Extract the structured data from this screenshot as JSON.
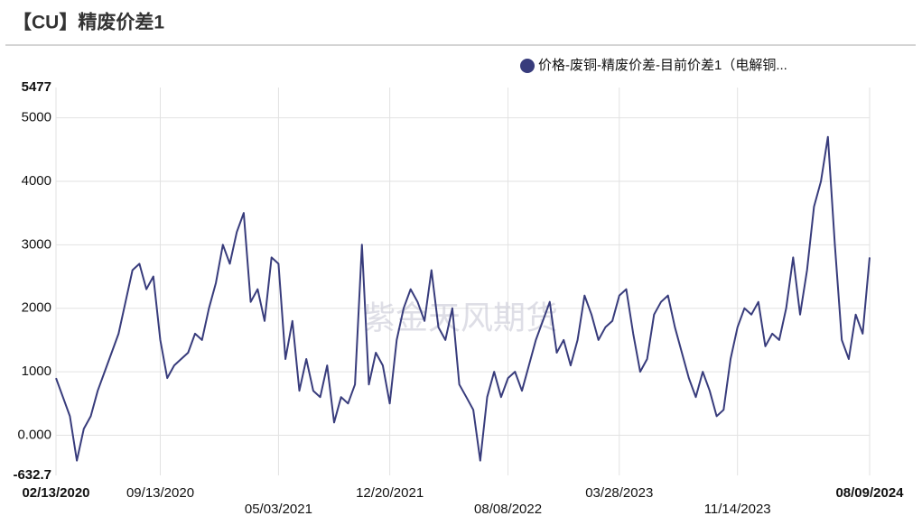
{
  "chart_data": {
    "type": "line",
    "title": "【CU】精废价差1",
    "watermark": "紫金天风期货",
    "categories": [
      "02/13/2020",
      null,
      null,
      null,
      null,
      null,
      null,
      null,
      null,
      null,
      null,
      null,
      null,
      null,
      null,
      "09/13/2020",
      null,
      null,
      null,
      null,
      null,
      null,
      null,
      null,
      null,
      null,
      null,
      null,
      null,
      null,
      null,
      null,
      "05/03/2021",
      null,
      null,
      null,
      null,
      null,
      null,
      null,
      null,
      null,
      null,
      null,
      null,
      null,
      null,
      null,
      "12/20/2021",
      null,
      null,
      null,
      null,
      null,
      null,
      null,
      null,
      null,
      null,
      null,
      null,
      null,
      null,
      null,
      null,
      "08/08/2022",
      null,
      null,
      null,
      null,
      null,
      null,
      null,
      null,
      null,
      null,
      null,
      null,
      null,
      null,
      null,
      "03/28/2023",
      null,
      null,
      null,
      null,
      null,
      null,
      null,
      null,
      null,
      null,
      null,
      null,
      null,
      null,
      null,
      null,
      "11/14/2023",
      null,
      null,
      null,
      null,
      null,
      null,
      null,
      null,
      null,
      null,
      null,
      null,
      null,
      null,
      null,
      null,
      null,
      null,
      "08/09/2024"
    ],
    "series": [
      {
        "name": "价格-废铜-精废价差-目前价差1（电解铜...",
        "color": "#383c7c",
        "values": [
          900,
          600,
          300,
          -400,
          100,
          300,
          700,
          1000,
          1300,
          1600,
          2100,
          2600,
          2700,
          2300,
          2500,
          1500,
          900,
          1100,
          1200,
          1300,
          1600,
          1500,
          2000,
          2400,
          3000,
          2700,
          3200,
          3500,
          2100,
          2300,
          1800,
          2800,
          2700,
          1200,
          1800,
          700,
          1200,
          700,
          600,
          1100,
          200,
          600,
          500,
          800,
          3000,
          800,
          1300,
          1100,
          500,
          1500,
          2000,
          2300,
          2100,
          1800,
          2600,
          1700,
          1500,
          2000,
          800,
          600,
          400,
          -400,
          600,
          1000,
          600,
          900,
          1000,
          700,
          1100,
          1500,
          1800,
          2100,
          1300,
          1500,
          1100,
          1500,
          2200,
          1900,
          1500,
          1700,
          1800,
          2200,
          2300,
          1600,
          1000,
          1200,
          1900,
          2100,
          2200,
          1700,
          1300,
          900,
          600,
          1000,
          700,
          300,
          400,
          1200,
          1700,
          2000,
          1900,
          2100,
          1400,
          1600,
          1500,
          2000,
          2800,
          1900,
          2600,
          3600,
          4000,
          4700,
          3000,
          1500,
          1200,
          1900,
          1600,
          2800
        ]
      }
    ],
    "ylim": [
      -632.7,
      5477
    ],
    "yticks": [
      -632.7,
      {
        "value": 0,
        "label": "0.000"
      },
      1000,
      2000,
      3000,
      4000,
      5000,
      5477
    ],
    "grid": true
  }
}
